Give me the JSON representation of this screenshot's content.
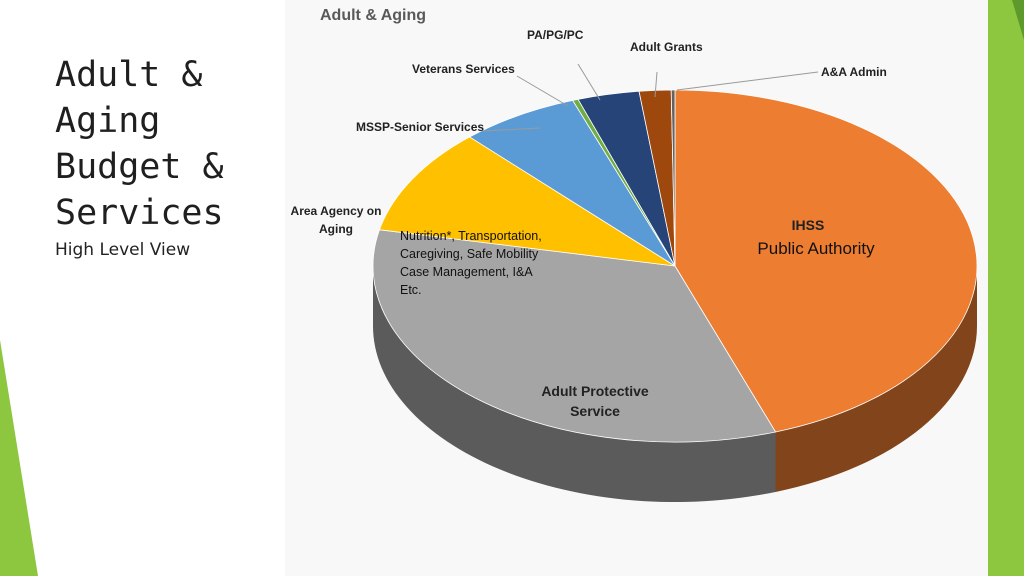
{
  "slide": {
    "title_lines": [
      "Adult &",
      "Aging",
      "Budget &",
      "Services"
    ],
    "subtitle": "High Level View"
  },
  "chart_data": {
    "type": "pie",
    "title": "Adult & Aging",
    "categories": [
      "IHSS Public Authority",
      "Adult Protective Service",
      "Area Agency on Aging",
      "MSSP-Senior Services",
      "Veterans Services",
      "PA/PG/PC",
      "Adult Grants",
      "A&A Admin"
    ],
    "values": [
      44.6,
      33.7,
      9.8,
      6.4,
      0.3,
      3.3,
      1.7,
      0.2
    ],
    "colors": [
      "#ED7D31",
      "#A5A5A5",
      "#FFC000",
      "#5B9BD5",
      "#70AD47",
      "#264478",
      "#9E480E",
      "#636363"
    ],
    "labels": {
      "ihss_title": "IHSS",
      "ihss_sub": "Public Authority",
      "aps": [
        "Adult Protective",
        "Service"
      ],
      "aaa": [
        "Area Agency on",
        "Aging"
      ],
      "aaa_detail": [
        "Nutrition*, Transportation,",
        "Caregiving, Safe Mobility",
        "Case Management, I&A",
        "Etc."
      ],
      "mssp": "MSSP-Senior Services",
      "veterans": "Veterans Services",
      "pa": "PA/PG/PC",
      "grants": "Adult Grants",
      "admin": "A&A Admin"
    }
  },
  "theme": {
    "accent_green": "#8DC63F",
    "dark_green": "#5E9A2B"
  }
}
